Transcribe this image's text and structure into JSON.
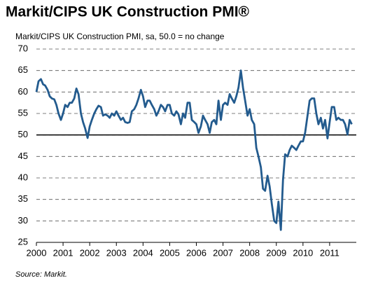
{
  "chart_data": {
    "type": "line",
    "title": "Markit/CIPS UK Construction PMI®",
    "subtitle": "Markit/CIPS UK Construction PMI, sa, 50.0 = no change",
    "source": "Source: Markit.",
    "xlim": [
      2000,
      2012
    ],
    "xticks": [
      2000,
      2001,
      2002,
      2003,
      2004,
      2005,
      2006,
      2007,
      2008,
      2009,
      2010,
      2011
    ],
    "ylim": [
      25,
      70
    ],
    "yticks": [
      25,
      30,
      35,
      40,
      45,
      50,
      55,
      60,
      65,
      70
    ],
    "grid": true,
    "reference_line": 50,
    "color": "#235b8e",
    "x": [
      2000,
      2000.08,
      2000.17,
      2000.25,
      2000.33,
      2000.42,
      2000.5,
      2000.58,
      2000.67,
      2000.75,
      2000.83,
      2000.92,
      2001,
      2001.08,
      2001.17,
      2001.25,
      2001.33,
      2001.42,
      2001.5,
      2001.58,
      2001.67,
      2001.75,
      2001.83,
      2001.92,
      2002,
      2002.08,
      2002.17,
      2002.25,
      2002.33,
      2002.42,
      2002.5,
      2002.58,
      2002.67,
      2002.75,
      2002.83,
      2002.92,
      2003,
      2003.08,
      2003.17,
      2003.25,
      2003.33,
      2003.42,
      2003.5,
      2003.58,
      2003.67,
      2003.75,
      2003.83,
      2003.92,
      2004,
      2004.08,
      2004.17,
      2004.25,
      2004.33,
      2004.42,
      2004.5,
      2004.58,
      2004.67,
      2004.75,
      2004.83,
      2004.92,
      2005,
      2005.08,
      2005.17,
      2005.25,
      2005.33,
      2005.42,
      2005.5,
      2005.58,
      2005.67,
      2005.75,
      2005.83,
      2005.92,
      2006,
      2006.08,
      2006.17,
      2006.25,
      2006.33,
      2006.42,
      2006.5,
      2006.58,
      2006.67,
      2006.75,
      2006.83,
      2006.92,
      2007,
      2007.08,
      2007.17,
      2007.25,
      2007.33,
      2007.42,
      2007.5,
      2007.58,
      2007.67,
      2007.75,
      2007.83,
      2007.92,
      2008,
      2008.08,
      2008.17,
      2008.25,
      2008.33,
      2008.42,
      2008.5,
      2008.58,
      2008.67,
      2008.75,
      2008.83,
      2008.92,
      2009,
      2009.08,
      2009.17,
      2009.25,
      2009.33,
      2009.42,
      2009.5,
      2009.58,
      2009.67,
      2009.75,
      2009.83,
      2009.92,
      2010,
      2010.08,
      2010.17,
      2010.25,
      2010.33,
      2010.42,
      2010.5,
      2010.58,
      2010.67,
      2010.75,
      2010.83,
      2010.92,
      2011,
      2011.08,
      2011.17,
      2011.25,
      2011.33,
      2011.42,
      2011.5,
      2011.58,
      2011.67,
      2011.75,
      2011.83
    ],
    "values": [
      60,
      62.5,
      63,
      61.8,
      61.5,
      60.5,
      59,
      58.5,
      58.3,
      57,
      55,
      53.5,
      55,
      57,
      56.5,
      57.5,
      57.5,
      58.5,
      60.8,
      59.5,
      55,
      53,
      51.5,
      49.3,
      52,
      53.5,
      55,
      56,
      56.8,
      56.5,
      54.5,
      54.8,
      54.5,
      54,
      55,
      54.5,
      55.5,
      54.5,
      53.5,
      54,
      53,
      52.8,
      53,
      55.5,
      56,
      57,
      58.5,
      60.5,
      59,
      56.5,
      58,
      58,
      57,
      56,
      54.5,
      55.5,
      57,
      56.5,
      55.5,
      57,
      57,
      55,
      54.5,
      55.5,
      54.8,
      52.5,
      55,
      54,
      57.5,
      57.5,
      53.5,
      53,
      52.5,
      50.5,
      52,
      54.5,
      53.5,
      52.5,
      50.5,
      53,
      53.5,
      52.5,
      58,
      53.5,
      57,
      57.5,
      57,
      59.5,
      58.5,
      57.5,
      59,
      61,
      65,
      61,
      58,
      54.5,
      56,
      53.5,
      52.5,
      47,
      45,
      42.5,
      37.5,
      37,
      40.5,
      38,
      34,
      30,
      29.5,
      34.5,
      27.9,
      39.5,
      45.5,
      45,
      46.5,
      47.5,
      47,
      46.5,
      47.5,
      48.5,
      48.5,
      50.5,
      54.5,
      58,
      58.5,
      58.5,
      55,
      52.5,
      54,
      51.5,
      53.5,
      49.2,
      53,
      56.5,
      56.5,
      53.5,
      54,
      53.5,
      53.5,
      52.5,
      50.1,
      53.5,
      52.5
    ]
  }
}
